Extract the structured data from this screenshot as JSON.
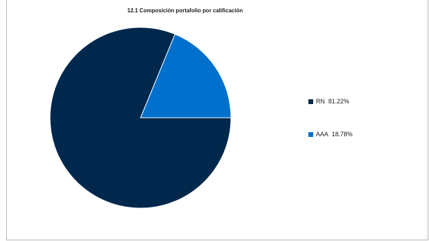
{
  "chart_data": {
    "type": "pie",
    "title": "12.1 Composición portafolio por calificación",
    "legend_position": "right",
    "slices": [
      {
        "label": "RN",
        "value": 81.22,
        "value_label": "81.22%",
        "color": "#00284d"
      },
      {
        "label": "AAA",
        "value": 18.78,
        "value_label": "18.78%",
        "color": "#0070cc"
      }
    ]
  }
}
